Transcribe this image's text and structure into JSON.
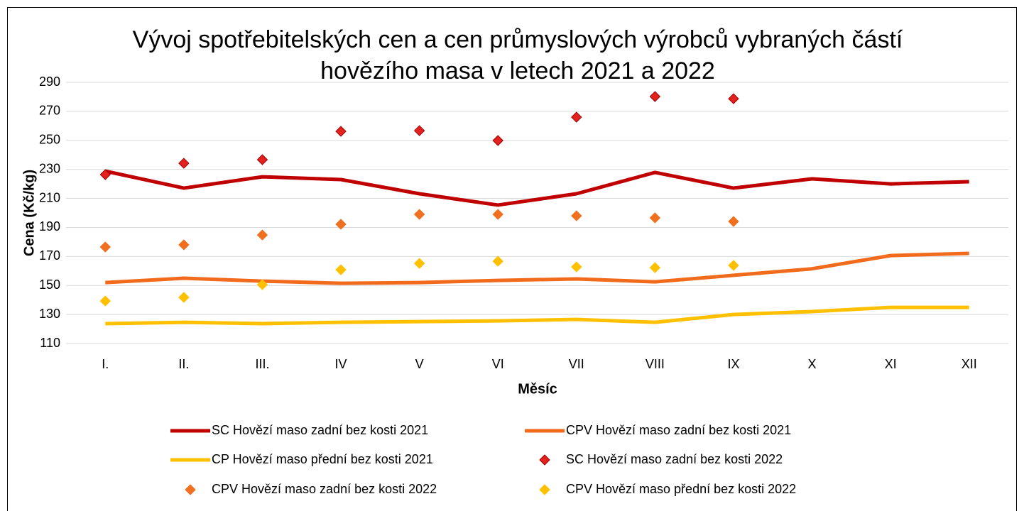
{
  "chart_data": {
    "type": "line",
    "title": "Vývoj spotřebitelských cen a cen průmyslových výrobců vybraných částí hovězího masa v letech 2021 a 2022",
    "x_label": "Měsíc",
    "y_label": "Cena (Kč/kg)",
    "categories": [
      "I.",
      "II.",
      "III.",
      "IV",
      "V",
      "VI",
      "VII",
      "VIII",
      "IX",
      "X",
      "XI",
      "XII"
    ],
    "ylim": [
      110,
      290
    ],
    "yticks": [
      110,
      130,
      150,
      170,
      190,
      210,
      230,
      250,
      270,
      290
    ],
    "grid": true,
    "legend": "bottom",
    "series": [
      {
        "name": "SC Hovězí  maso zadní bez kosti 2021",
        "type": "line",
        "color": "#c00000",
        "values": [
          228.8,
          217.1,
          224.9,
          223,
          213.2,
          205.4,
          213.2,
          227.9,
          217.1,
          223.5,
          220,
          221.5
        ]
      },
      {
        "name": "CPV  Hovězí maso zadní bez kosti 2021",
        "type": "line",
        "color": "#f26b1d",
        "values": [
          152,
          155,
          153,
          151.5,
          152,
          153.5,
          154.5,
          152.5,
          157,
          161.5,
          170.6,
          172.1
        ]
      },
      {
        "name": "CP Hovězí maso přední bez kosti 2021",
        "type": "line",
        "color": "#ffc000",
        "values": [
          123.7,
          124.6,
          123.7,
          124.6,
          125.1,
          125.6,
          126.6,
          124.6,
          130,
          132,
          134.9,
          134.9
        ]
      },
      {
        "name": "SC Hovězí  maso zadní bez kosti 2022",
        "type": "scatter",
        "color": "#e3211e",
        "values": [
          226.4,
          234.2,
          236.7,
          256.2,
          256.7,
          249.9,
          266,
          280.2,
          278.7,
          null,
          null,
          null
        ]
      },
      {
        "name": "CPV Hovězí maso zadní bez kosti 2022",
        "type": "scatter",
        "color": "#f07020",
        "values": [
          176.5,
          178,
          184.8,
          192.2,
          199,
          199,
          198,
          196.6,
          194.1,
          null,
          null,
          null
        ]
      },
      {
        "name": "CPV Hovězí maso přední bez kosti 2022",
        "type": "scatter",
        "color": "#ffc000",
        "values": [
          139.3,
          141.8,
          150.6,
          160.8,
          165.2,
          166.7,
          162.8,
          162.3,
          163.8,
          null,
          null,
          null
        ]
      }
    ]
  }
}
